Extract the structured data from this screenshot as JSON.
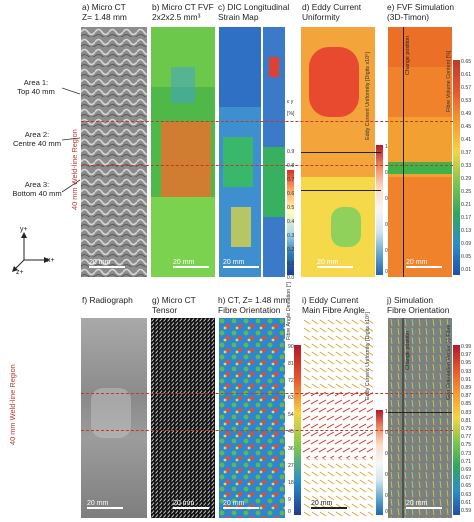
{
  "top_row": {
    "a": {
      "title_line1": "a) Micro CT",
      "title_line2": "Z= 1.48 mm",
      "scale": "20 mm"
    },
    "b": {
      "title_line1": "b) Micro CT FVF",
      "title_line2": "2x2x2.5 mm³",
      "scale": "20 mm"
    },
    "c": {
      "title_line1": "c) DIC Longitudinal",
      "title_line2": "Strain Map",
      "scale": "20 mm",
      "cbar_label": "ε y",
      "cbar_unit": "[%]",
      "ticks": [
        "0.9",
        "0.8",
        "0.7",
        "0.6",
        "0.5",
        "0.4",
        "0.3",
        "0.2",
        "0.1",
        "0.0"
      ]
    },
    "d": {
      "title_line1": "d) Eddy Current",
      "title_line2": "Uniformity",
      "scale": "20 mm",
      "cbar_label": "Eddy Current Uniformity [Digits x10⁶]",
      "ticks": [
        "1",
        "0.8",
        "0.6",
        "0.4",
        "0.2",
        "0"
      ]
    },
    "e": {
      "title_line1": "e) FVF Simulation",
      "title_line2": "(3D-Timon)",
      "scale": "20 mm",
      "overlay_label": "Change position",
      "cbar_label": "Fibre Volume Content [%]",
      "ticks": [
        "0.65",
        "0.61",
        "0.57",
        "0.53",
        "0.49",
        "0.45",
        "0.41",
        "0.37",
        "0.33",
        "0.29",
        "0.25",
        "0.21",
        "0.17",
        "0.13",
        "0.09",
        "0.05",
        "0.01"
      ]
    }
  },
  "bottom_row": {
    "f": {
      "title_line1": "f) Radiograph",
      "title_line2": "",
      "scale": "20 mm"
    },
    "g": {
      "title_line1": "g) Micro CT",
      "title_line2": "Tensor",
      "scale": "20 mm"
    },
    "h": {
      "title_line1": "h) CT, Z= 1.48 mm",
      "title_line2": "Fibre Orientation",
      "scale": "20 mm",
      "cbar_label": "Fibre Angle Deviation [°]",
      "ticks": [
        "90",
        "81",
        "72",
        "63",
        "54",
        "45",
        "36",
        "27",
        "18",
        "9",
        "0"
      ]
    },
    "i": {
      "title_line1": "i) Eddy Current",
      "title_line2": "Main Fibre Angle",
      "scale": "20 mm",
      "cbar_label": "Eddy Current Uniformity [Digits x10⁶]",
      "ticks": [
        "1",
        "0.8",
        "0.6",
        "0.4",
        "0.2",
        "0"
      ]
    },
    "j": {
      "title_line1": "j) Simulation",
      "title_line2": "Fibre Orientation",
      "scale": "20 mm",
      "overlay_label": "Change position",
      "cbar_label": "Gen Orientation Vector (-) Fibre",
      "ticks": [
        "0.99",
        "0.97",
        "0.95",
        "0.93",
        "0.91",
        "0.89",
        "0.87",
        "0.85",
        "0.83",
        "0.81",
        "0.79",
        "0.77",
        "0.75",
        "0.73",
        "0.71",
        "0.69",
        "0.67",
        "0.65",
        "0.63",
        "0.61",
        "0.59"
      ]
    }
  },
  "areas": [
    {
      "line1": "Area 1:",
      "line2": "Top 40 mm"
    },
    {
      "line1": "Area 2:",
      "line2": "Centre 40 mm"
    },
    {
      "line1": "Area 3:",
      "line2": "Bottom 40 mm"
    }
  ],
  "weld_label": "40 mm Weld-line Region",
  "axes": {
    "y": "y+",
    "x": "x+",
    "z": "z+"
  }
}
